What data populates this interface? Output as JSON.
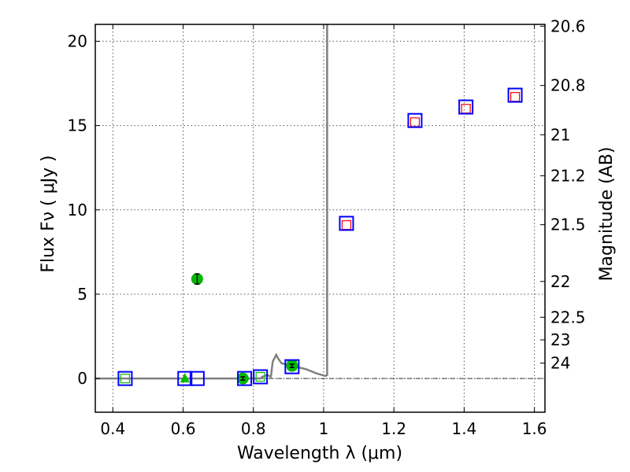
{
  "chart_data": {
    "type": "scatter",
    "title": "",
    "xlabel": "Wavelength  λ (μm)",
    "ylabel": "Flux  Fν  ( μJy )",
    "y2label": "Magnitude (AB)",
    "xlim": [
      0.35,
      1.63
    ],
    "ylim": [
      -2,
      21
    ],
    "grid": true,
    "xticks": [
      {
        "v": 0.4,
        "label": "0.4"
      },
      {
        "v": 0.6,
        "label": "0.6"
      },
      {
        "v": 0.8,
        "label": "0.8"
      },
      {
        "v": 1.0,
        "label": "1"
      },
      {
        "v": 1.2,
        "label": "1.2"
      },
      {
        "v": 1.4,
        "label": "1.4"
      },
      {
        "v": 1.6,
        "label": "1.6"
      }
    ],
    "yticks": [
      {
        "v": 0,
        "label": "0"
      },
      {
        "v": 5,
        "label": "5"
      },
      {
        "v": 10,
        "label": "10"
      },
      {
        "v": 15,
        "label": "15"
      },
      {
        "v": 20,
        "label": "20"
      }
    ],
    "y2ticks": [
      {
        "v": 20.6,
        "label": "20.6"
      },
      {
        "v": 20.8,
        "label": "20.8"
      },
      {
        "v": 21,
        "label": "21"
      },
      {
        "v": 21.2,
        "label": "21.2"
      },
      {
        "v": 21.5,
        "label": "21.5"
      },
      {
        "v": 22,
        "label": "22"
      },
      {
        "v": 22.5,
        "label": "22.5"
      },
      {
        "v": 23,
        "label": "23"
      },
      {
        "v": 24,
        "label": "24"
      }
    ],
    "colors": {
      "model": "#808080",
      "obs_square": "#0000ff",
      "model_square_red": "#ff0000",
      "model_square_green": "#00c000",
      "detection": "#00bb00",
      "zero_line": "#000000"
    },
    "series": [
      {
        "name": "model_spectrum",
        "kind": "line",
        "x": [
          0.35,
          0.82,
          0.825,
          0.84,
          0.85,
          0.855,
          0.86,
          0.865,
          0.87,
          0.88,
          0.89,
          0.9,
          0.92,
          0.95,
          0.98,
          1.005,
          1.01,
          1.01
        ],
        "y": [
          0,
          0,
          0.1,
          0.2,
          0.1,
          1.0,
          1.2,
          1.4,
          1.2,
          0.9,
          0.85,
          0.8,
          0.7,
          0.55,
          0.3,
          0.15,
          0.2,
          21.5
        ]
      },
      {
        "name": "observed_photometry",
        "kind": "square",
        "edge": "blue",
        "x": [
          0.435,
          0.605,
          0.64,
          0.775,
          0.82,
          0.91,
          1.065,
          1.26,
          1.405,
          1.545
        ],
        "y": [
          0,
          0,
          0,
          0,
          0.1,
          0.7,
          9.2,
          15.3,
          16.1,
          16.8
        ]
      },
      {
        "name": "model_photometry_red",
        "kind": "square",
        "edge": "red",
        "x": [
          1.065,
          1.26,
          1.405,
          1.545
        ],
        "y": [
          9.1,
          15.2,
          16.0,
          16.7
        ]
      },
      {
        "name": "model_photometry_green",
        "kind": "square",
        "edge": "green",
        "x": [
          0.435,
          0.82,
          0.91
        ],
        "y": [
          0,
          0.1,
          0.8
        ]
      },
      {
        "name": "detections",
        "kind": "circle",
        "x": [
          0.64,
          0.77,
          0.91
        ],
        "y": [
          5.9,
          0,
          0.75
        ],
        "yerr": [
          0.3,
          0.1,
          0.1
        ]
      },
      {
        "name": "upper_limit",
        "kind": "triangle",
        "x": [
          0.605
        ],
        "y": [
          0
        ]
      }
    ]
  }
}
